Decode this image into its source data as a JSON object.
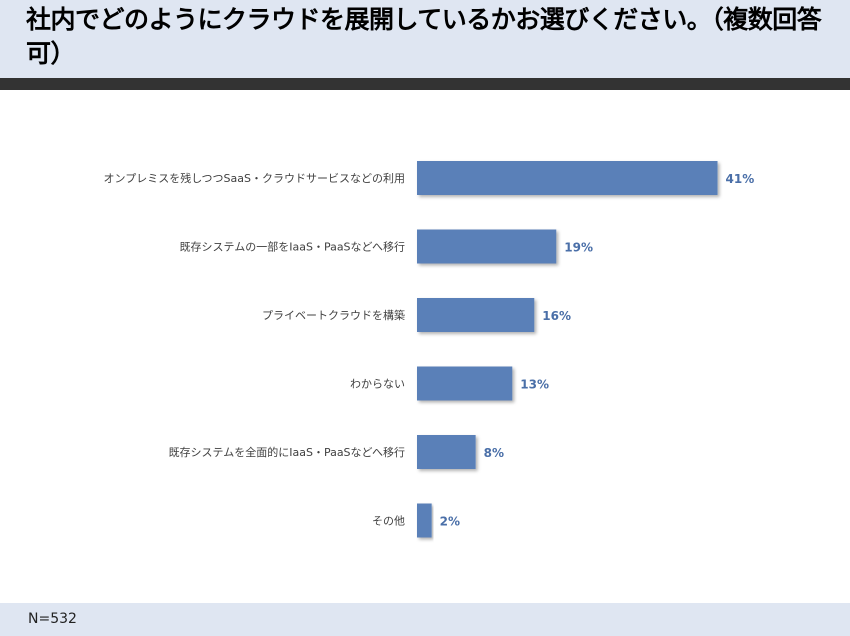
{
  "title": "社内でどのようにクラウドを展開しているかお選びください。（複数回答可）",
  "footnote": "N=532",
  "colors": {
    "header_bg": "#dfe6f2",
    "rule": "#333333",
    "bar": "#5a80b8",
    "value_label": "#4a6fa8"
  },
  "chart_data": {
    "type": "bar",
    "orientation": "horizontal",
    "categories": [
      "オンプレミスを残しつつSaaS・クラウドサービスなどの利用",
      "既存システムの一部をIaaS・PaaSなどへ移行",
      "プライベートクラウドを構築",
      "わからない",
      "既存システムを全面的にIaaS・PaaSなどへ移行",
      "その他"
    ],
    "values": [
      41,
      19,
      16,
      13,
      8,
      2
    ],
    "value_labels": [
      "41%",
      "19%",
      "16%",
      "13%",
      "8%",
      "2%"
    ],
    "unit": "%",
    "grid": false,
    "legend": "none"
  }
}
